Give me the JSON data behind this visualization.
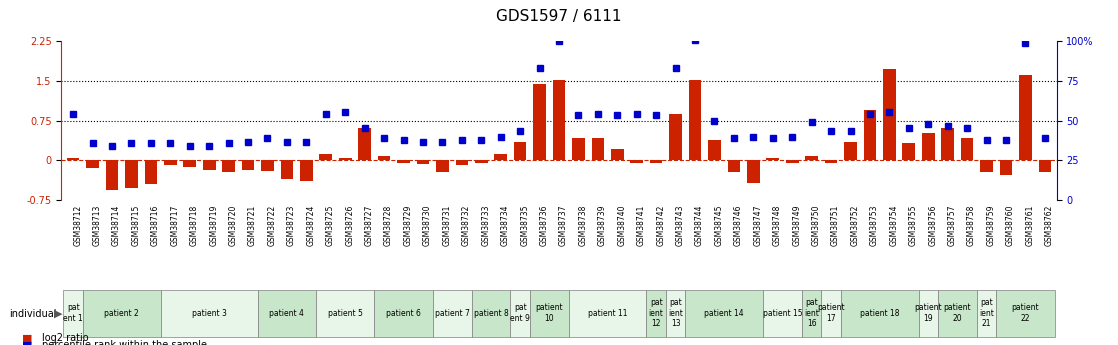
{
  "title": "GDS1597 / 6111",
  "samples": [
    "GSM38712",
    "GSM38713",
    "GSM38714",
    "GSM38715",
    "GSM38716",
    "GSM38717",
    "GSM38718",
    "GSM38719",
    "GSM38720",
    "GSM38721",
    "GSM38722",
    "GSM38723",
    "GSM38724",
    "GSM38725",
    "GSM38726",
    "GSM38727",
    "GSM38728",
    "GSM38729",
    "GSM38730",
    "GSM38731",
    "GSM38732",
    "GSM38733",
    "GSM38734",
    "GSM38735",
    "GSM38736",
    "GSM38737",
    "GSM38738",
    "GSM38739",
    "GSM38740",
    "GSM38741",
    "GSM38742",
    "GSM38743",
    "GSM38744",
    "GSM38745",
    "GSM38746",
    "GSM38747",
    "GSM38748",
    "GSM38749",
    "GSM38750",
    "GSM38751",
    "GSM38752",
    "GSM38753",
    "GSM38754",
    "GSM38755",
    "GSM38756",
    "GSM38757",
    "GSM38758",
    "GSM38759",
    "GSM38760",
    "GSM38761",
    "GSM38762"
  ],
  "log2_ratio": [
    0.05,
    -0.15,
    -0.55,
    -0.52,
    -0.45,
    -0.08,
    -0.12,
    -0.18,
    -0.22,
    -0.18,
    -0.2,
    -0.35,
    -0.38,
    0.12,
    0.05,
    0.62,
    0.08,
    -0.05,
    -0.06,
    -0.22,
    -0.08,
    -0.05,
    0.12,
    0.35,
    1.45,
    1.52,
    0.42,
    0.42,
    0.22,
    -0.05,
    -0.05,
    0.88,
    1.52,
    0.38,
    -0.22,
    -0.42,
    0.05,
    -0.05,
    0.08,
    -0.05,
    0.35,
    0.95,
    1.72,
    0.32,
    0.52,
    0.62,
    0.42,
    -0.22,
    -0.28,
    1.62,
    -0.22
  ],
  "percentile": [
    0.88,
    0.32,
    0.28,
    0.32,
    0.32,
    0.32,
    0.28,
    0.28,
    0.32,
    0.35,
    0.42,
    0.35,
    0.35,
    0.88,
    0.92,
    0.62,
    0.42,
    0.38,
    0.35,
    0.35,
    0.38,
    0.38,
    0.45,
    0.55,
    1.75,
    2.25,
    0.85,
    0.88,
    0.85,
    0.88,
    0.85,
    1.75,
    2.28,
    0.75,
    0.42,
    0.45,
    0.42,
    0.45,
    0.72,
    0.55,
    0.55,
    0.88,
    0.92,
    0.62,
    0.68,
    0.65,
    0.62,
    0.38,
    0.38,
    2.22,
    0.42
  ],
  "patients": [
    {
      "label": "pat\nent 1",
      "start": 0,
      "end": 1,
      "color": "#e8f5e9"
    },
    {
      "label": "patient 2",
      "start": 1,
      "end": 5,
      "color": "#c8e6c9"
    },
    {
      "label": "patient 3",
      "start": 5,
      "end": 10,
      "color": "#e8f5e9"
    },
    {
      "label": "patient 4",
      "start": 10,
      "end": 13,
      "color": "#c8e6c9"
    },
    {
      "label": "patient 5",
      "start": 13,
      "end": 16,
      "color": "#e8f5e9"
    },
    {
      "label": "patient 6",
      "start": 16,
      "end": 19,
      "color": "#c8e6c9"
    },
    {
      "label": "patient 7",
      "start": 19,
      "end": 21,
      "color": "#e8f5e9"
    },
    {
      "label": "patient 8",
      "start": 21,
      "end": 23,
      "color": "#c8e6c9"
    },
    {
      "label": "pat\nent 9",
      "start": 23,
      "end": 24,
      "color": "#e8f5e9"
    },
    {
      "label": "patient\n10",
      "start": 24,
      "end": 26,
      "color": "#c8e6c9"
    },
    {
      "label": "patient 11",
      "start": 26,
      "end": 30,
      "color": "#e8f5e9"
    },
    {
      "label": "pat\nient\n12",
      "start": 30,
      "end": 31,
      "color": "#c8e6c9"
    },
    {
      "label": "pat\nient\n13",
      "start": 31,
      "end": 32,
      "color": "#e8f5e9"
    },
    {
      "label": "patient 14",
      "start": 32,
      "end": 36,
      "color": "#c8e6c9"
    },
    {
      "label": "patient 15",
      "start": 36,
      "end": 38,
      "color": "#e8f5e9"
    },
    {
      "label": "pat\nient\n16",
      "start": 38,
      "end": 39,
      "color": "#c8e6c9"
    },
    {
      "label": "patient\n17",
      "start": 39,
      "end": 40,
      "color": "#e8f5e9"
    },
    {
      "label": "patient 18",
      "start": 40,
      "end": 44,
      "color": "#c8e6c9"
    },
    {
      "label": "patient\n19",
      "start": 44,
      "end": 45,
      "color": "#e8f5e9"
    },
    {
      "label": "patient\n20",
      "start": 45,
      "end": 47,
      "color": "#c8e6c9"
    },
    {
      "label": "pat\nient\n21",
      "start": 47,
      "end": 48,
      "color": "#e8f5e9"
    },
    {
      "label": "patient\n22",
      "start": 48,
      "end": 51,
      "color": "#c8e6c9"
    }
  ],
  "ylim_left": [
    -0.75,
    2.25
  ],
  "yticks_left": [
    -0.75,
    0.0,
    0.75,
    1.5,
    2.25
  ],
  "ytick_labels_left": [
    "-0.75",
    "0",
    "0.75",
    "1.5",
    "2.25"
  ],
  "ylim_right": [
    0,
    100
  ],
  "yticks_right": [
    0,
    25,
    50,
    75,
    100
  ],
  "ytick_labels_right": [
    "0",
    "25",
    "50",
    "75",
    "100%"
  ],
  "dotted_lines": [
    0.75,
    1.5
  ],
  "bar_color": "#cc2200",
  "dot_color": "#0000cc",
  "zero_line_color": "#cc2200",
  "title_fontsize": 11,
  "tick_fontsize": 7,
  "label_fontsize": 7.5
}
